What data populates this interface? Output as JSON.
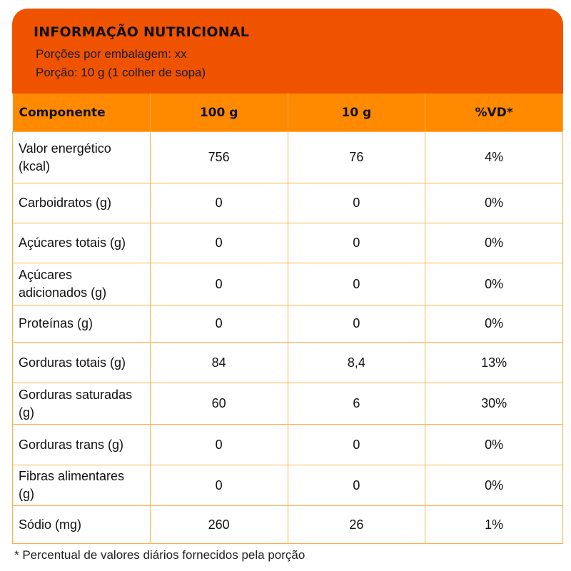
{
  "header": {
    "title": "INFORMAÇÃO NUTRICIONAL",
    "servings": "Porções por embalagem: xx",
    "portion": "Porção: 10 g (1 colher de sopa)"
  },
  "table": {
    "columns": [
      "Componente",
      "100 g",
      "10 g",
      "%VD*"
    ],
    "rows": [
      [
        "Valor energético (kcal)",
        "756",
        "76",
        "4%"
      ],
      [
        "Carboidratos (g)",
        "0",
        "0",
        "0%"
      ],
      [
        "Açúcares totais (g)",
        "0",
        "0",
        "0%"
      ],
      [
        "Açúcares adicionados (g)",
        "0",
        "0",
        "0%"
      ],
      [
        "Proteínas (g)",
        "0",
        "0",
        "0%"
      ],
      [
        "Gorduras totais (g)",
        "84",
        "8,4",
        "13%"
      ],
      [
        "Gorduras saturadas (g)",
        "60",
        "6",
        "30%"
      ],
      [
        "Gorduras trans (g)",
        "0",
        "0",
        "0%"
      ],
      [
        "Fibras alimentares (g)",
        "0",
        "0",
        "0%"
      ],
      [
        "Sódio (mg)",
        "260",
        "26",
        "1%"
      ]
    ]
  },
  "footnote": "* Percentual de valores diários fornecidos pela porção",
  "colors": {
    "header": "#F05300",
    "table_header": "#FF8A00",
    "border": "#FFB04D"
  }
}
